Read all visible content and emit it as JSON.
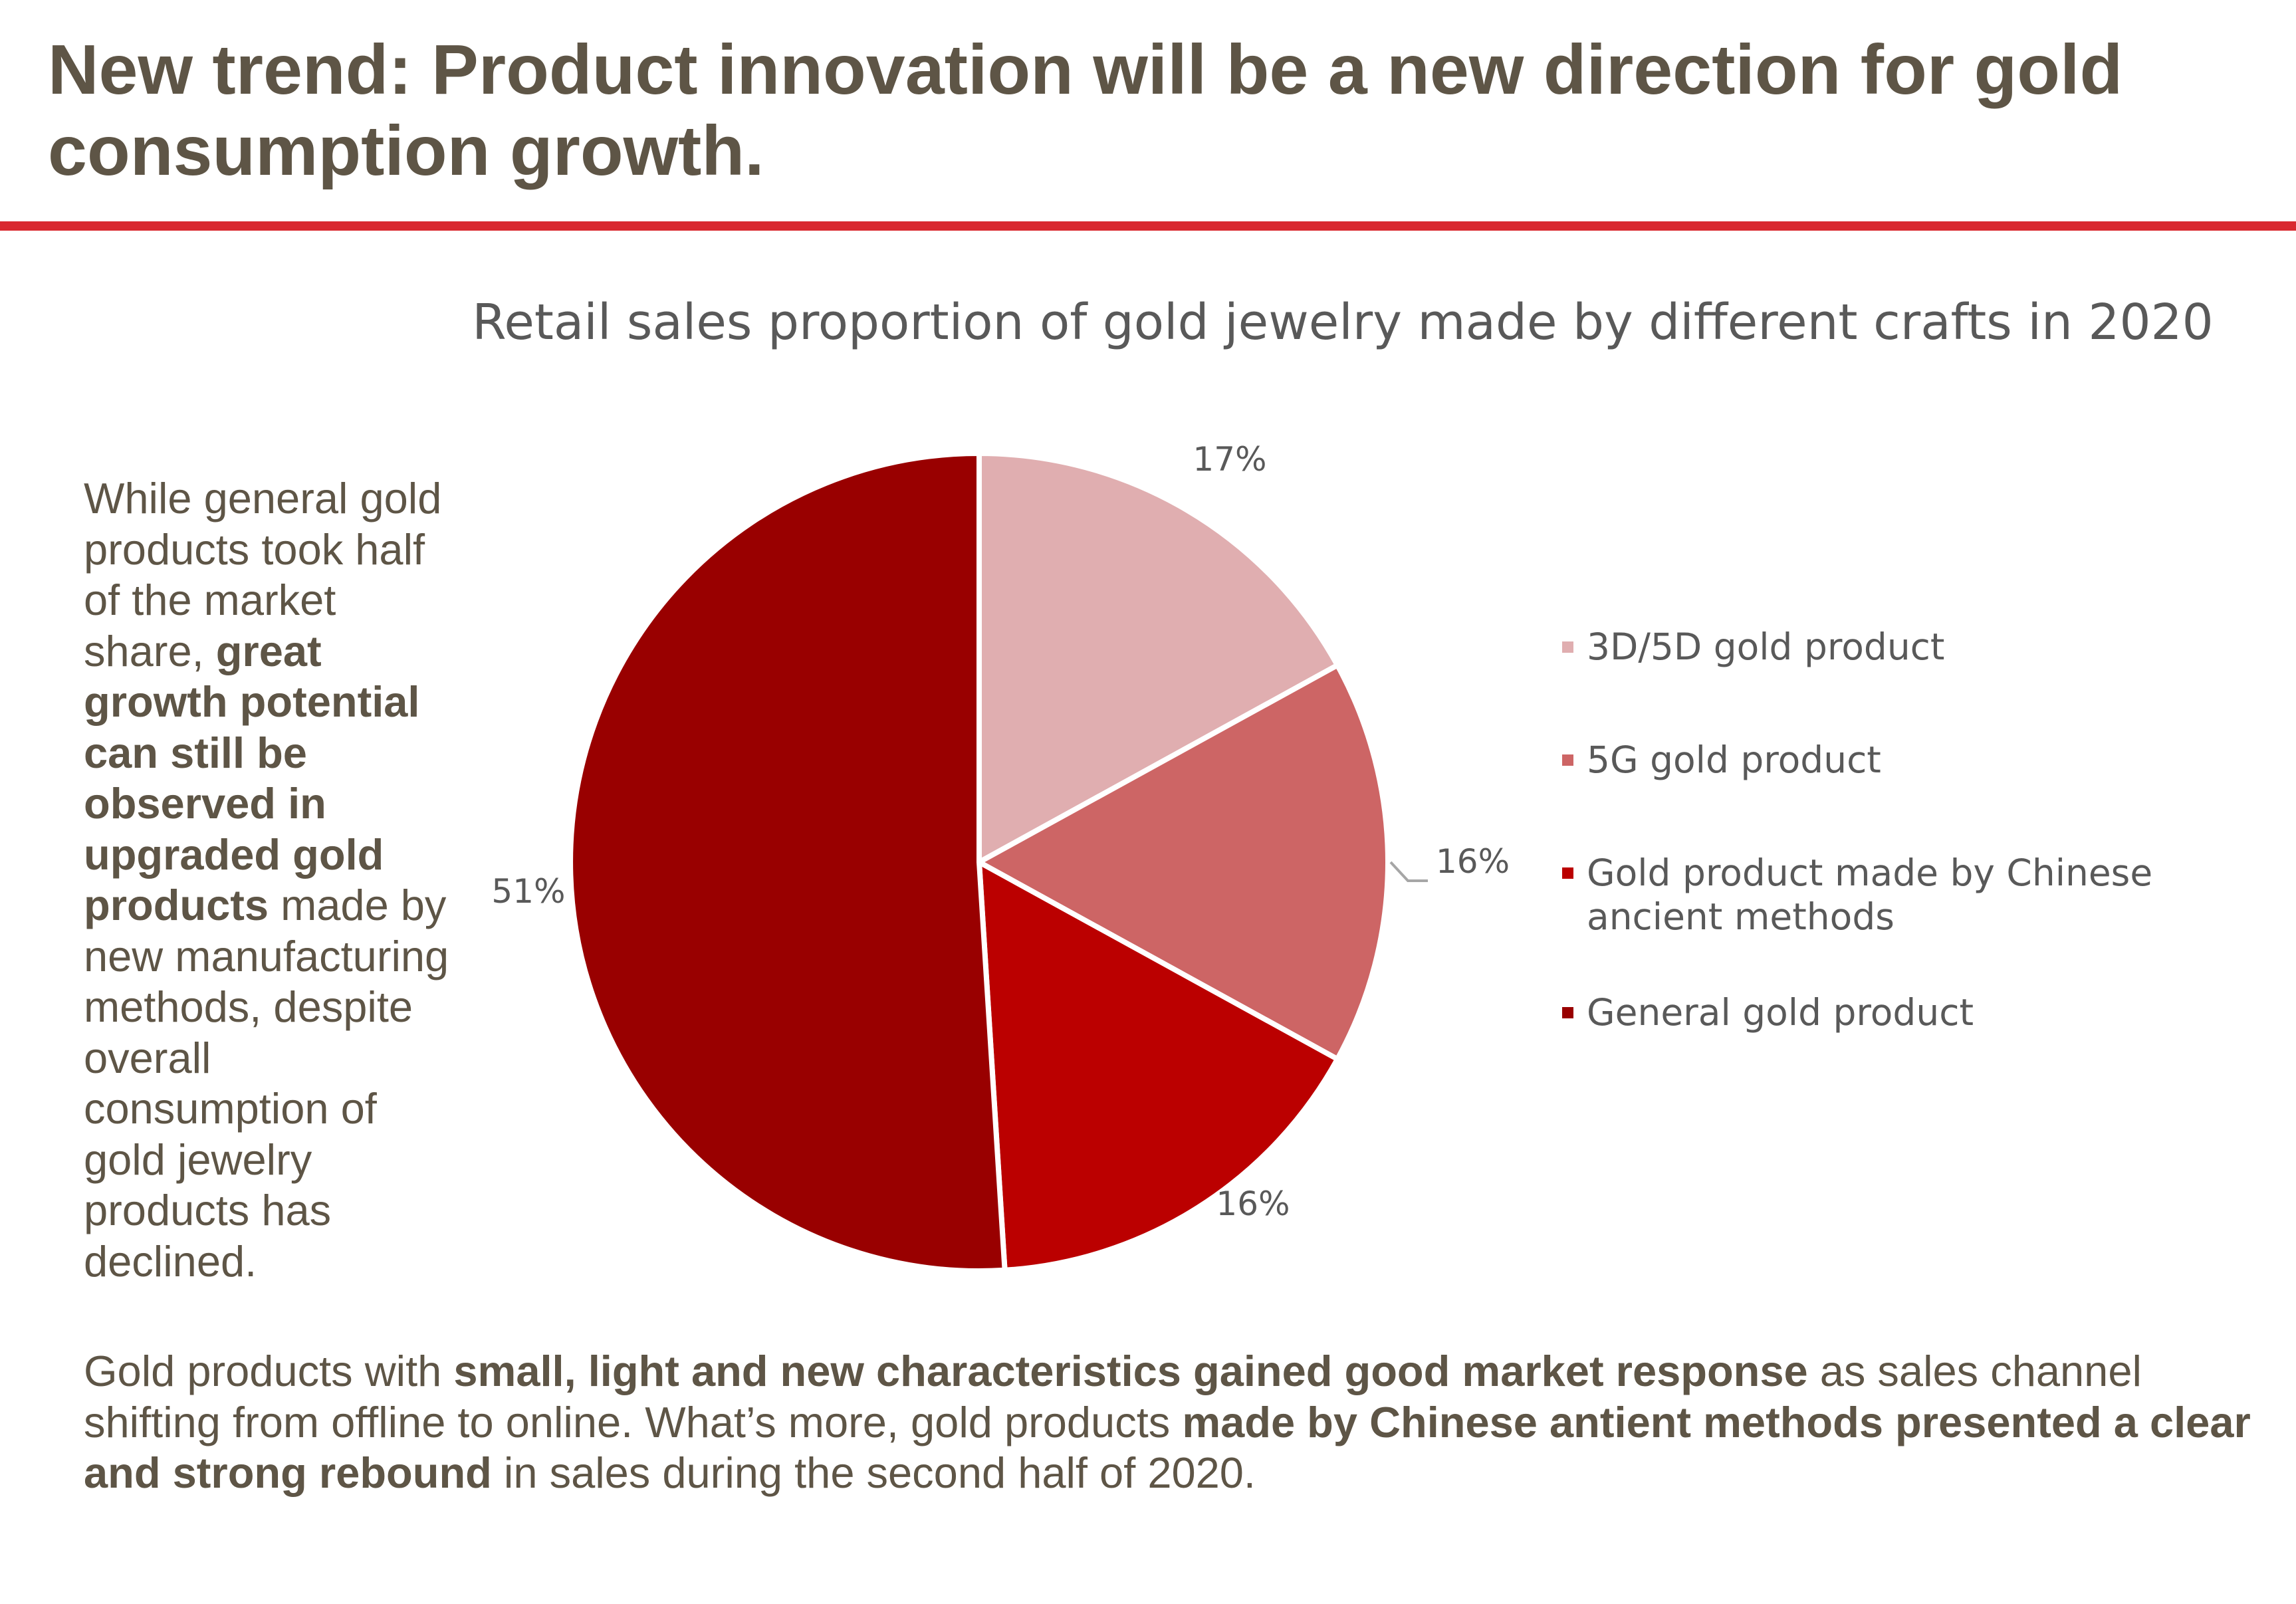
{
  "title": "New trend: Product innovation will be a new direction for gold consumption growth.",
  "side_text": {
    "t1": "While general gold products took half of the market share, ",
    "b1": "great growth potential can still be observed in upgraded gold products",
    "t2": " made by new manufacturing methods, despite overall consumption of gold jewelry products has declined."
  },
  "bottom_text": {
    "t1": "Gold products with ",
    "b1": "small, light and new characteristics gained good market response",
    "t2": " as sales channel shifting from offline to online. What’s more, gold products ",
    "b2": "made by Chinese antient methods presented a clear and strong rebound",
    "t3": " in sales during the second half of 2020."
  },
  "colors": {
    "title_text": "#5e5546",
    "divider": "#d9282f"
  },
  "chart_data": {
    "type": "pie",
    "title": "Retail sales proportion of gold jewelry made by different crafts in 2020",
    "legend_position": "right",
    "slices": [
      {
        "label": "3D/5D gold product",
        "value": 17,
        "display": "17%",
        "color": "#e0aeb0"
      },
      {
        "label": "5G gold product",
        "value": 16,
        "display": "16%",
        "color": "#cd6565"
      },
      {
        "label": "Gold product made by Chinese ancient methods",
        "value": 16,
        "display": "16%",
        "color": "#bb0000"
      },
      {
        "label": "General gold product",
        "value": 51,
        "display": "51%",
        "color": "#990000"
      }
    ]
  }
}
